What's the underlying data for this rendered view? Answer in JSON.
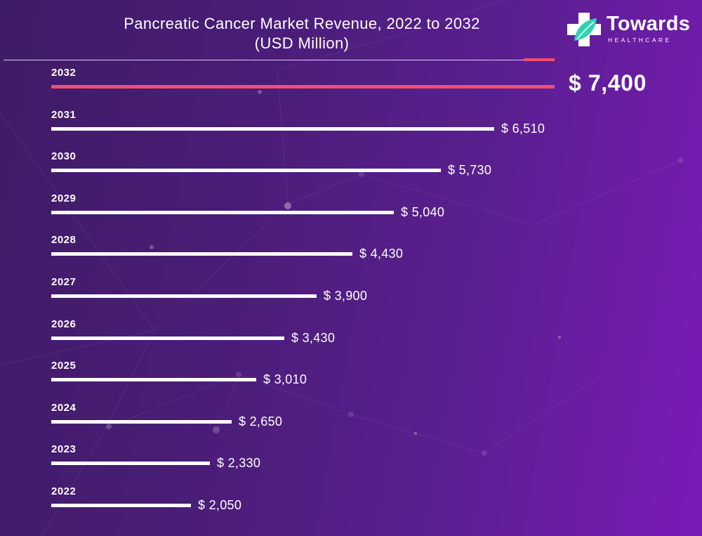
{
  "title_line1": "Pancreatic Cancer Market Revenue, 2022 to 2032",
  "title_line2": "(USD Million)",
  "logo": {
    "name": "Towards",
    "sub": "HEALTHCARE",
    "icon": "medical-cross-leaf-icon"
  },
  "colors": {
    "background": "#4a1d78",
    "bar": "#ffffff",
    "highlight_bar": "#f0506e",
    "logo_cross": "#ffffff",
    "logo_leaf": "#2fd1b2"
  },
  "chart_data": {
    "type": "bar",
    "orientation": "horizontal",
    "title": "Pancreatic Cancer Market Revenue, 2022 to 2032 (USD Million)",
    "categories": [
      "2032",
      "2031",
      "2030",
      "2029",
      "2028",
      "2027",
      "2026",
      "2025",
      "2024",
      "2023",
      "2022"
    ],
    "values": [
      7400,
      6510,
      5730,
      5040,
      4430,
      3900,
      3430,
      3010,
      2650,
      2330,
      2050
    ],
    "labels": [
      "$ 7,400",
      "$ 6,510",
      "$ 5,730",
      "$ 5,040",
      "$ 4,430",
      "$ 3,900",
      "$ 3,430",
      "$ 3,010",
      "$ 2,650",
      "$ 2,330",
      "$ 2,050"
    ],
    "highlight": "2032",
    "xlim": [
      0,
      7400
    ],
    "grid": false,
    "legend": "none"
  }
}
